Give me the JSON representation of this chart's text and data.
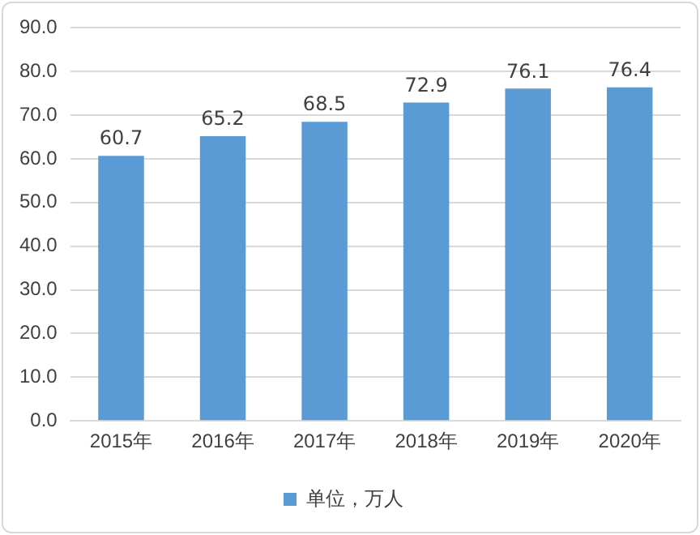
{
  "chart_data": {
    "type": "bar",
    "categories": [
      "2015年",
      "2016年",
      "2017年",
      "2018年",
      "2019年",
      "2020年"
    ],
    "series": [
      {
        "name": "单位，万人",
        "color": "#5b9bd5",
        "values": [
          60.7,
          65.2,
          68.5,
          72.9,
          76.1,
          76.4
        ]
      }
    ],
    "ylim": [
      0,
      90
    ],
    "yticks": [
      {
        "value": 0,
        "label": "0.0"
      },
      {
        "value": 10,
        "label": "10.0"
      },
      {
        "value": 20,
        "label": "20.0"
      },
      {
        "value": 30,
        "label": "30.0"
      },
      {
        "value": 40,
        "label": "40.0"
      },
      {
        "value": 50,
        "label": "50.0"
      },
      {
        "value": 60,
        "label": "60.0"
      },
      {
        "value": 70,
        "label": "70.0"
      },
      {
        "value": 80,
        "label": "80.0"
      },
      {
        "value": 90,
        "label": "90.0"
      }
    ],
    "grid": "y",
    "legend": "bottom",
    "data_labels": true
  }
}
